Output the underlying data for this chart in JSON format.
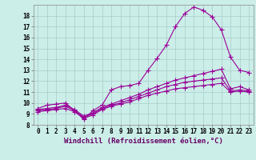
{
  "xlabel": "Windchill (Refroidissement éolien,°C)",
  "ylabel": "",
  "bg_color": "#cceee8",
  "grid_color": "#aacccc",
  "line_color": "#990099",
  "xlim": [
    -0.5,
    23.5
  ],
  "ylim": [
    8,
    19
  ],
  "xticks": [
    0,
    1,
    2,
    3,
    4,
    5,
    6,
    7,
    8,
    9,
    10,
    11,
    12,
    13,
    14,
    15,
    16,
    17,
    18,
    19,
    20,
    21,
    22,
    23
  ],
  "yticks": [
    8,
    9,
    10,
    11,
    12,
    13,
    14,
    15,
    16,
    17,
    18
  ],
  "curve1_x": [
    0,
    1,
    2,
    3,
    4,
    5,
    6,
    7,
    8,
    9,
    10,
    11,
    12,
    13,
    14,
    15,
    16,
    17,
    18,
    19,
    20,
    21,
    22,
    23
  ],
  "curve1_y": [
    9.5,
    9.8,
    9.9,
    10.0,
    9.3,
    8.5,
    9.3,
    9.8,
    11.2,
    11.5,
    11.6,
    11.8,
    13.0,
    14.1,
    15.3,
    17.0,
    18.2,
    18.8,
    18.5,
    17.9,
    16.7,
    14.2,
    13.0,
    12.8
  ],
  "curve2_x": [
    0,
    1,
    2,
    3,
    4,
    5,
    6,
    7,
    8,
    9,
    10,
    11,
    12,
    13,
    14,
    15,
    16,
    17,
    18,
    19,
    20,
    21,
    22,
    23
  ],
  "curve2_y": [
    9.4,
    9.5,
    9.6,
    9.8,
    9.4,
    8.8,
    9.1,
    9.6,
    9.9,
    10.2,
    10.5,
    10.8,
    11.2,
    11.5,
    11.8,
    12.1,
    12.3,
    12.5,
    12.7,
    12.9,
    13.1,
    11.3,
    11.5,
    11.2
  ],
  "curve3_x": [
    0,
    1,
    2,
    3,
    4,
    5,
    6,
    7,
    8,
    9,
    10,
    11,
    12,
    13,
    14,
    15,
    16,
    17,
    18,
    19,
    20,
    21,
    22,
    23
  ],
  "curve3_y": [
    9.3,
    9.4,
    9.5,
    9.7,
    9.3,
    8.7,
    9.0,
    9.5,
    9.8,
    10.0,
    10.3,
    10.6,
    10.9,
    11.2,
    11.5,
    11.7,
    11.9,
    12.0,
    12.1,
    12.2,
    12.3,
    11.1,
    11.2,
    11.1
  ],
  "curve4_x": [
    0,
    1,
    2,
    3,
    4,
    5,
    6,
    7,
    8,
    9,
    10,
    11,
    12,
    13,
    14,
    15,
    16,
    17,
    18,
    19,
    20,
    21,
    22,
    23
  ],
  "curve4_y": [
    9.2,
    9.3,
    9.4,
    9.5,
    9.2,
    8.6,
    8.9,
    9.4,
    9.7,
    9.9,
    10.1,
    10.4,
    10.7,
    10.9,
    11.1,
    11.3,
    11.4,
    11.5,
    11.6,
    11.7,
    11.8,
    11.0,
    11.1,
    11.0
  ],
  "marker_style": "+",
  "marker_size": 4,
  "line_width": 0.8,
  "tick_fontsize": 5.5,
  "xlabel_fontsize": 6.5
}
